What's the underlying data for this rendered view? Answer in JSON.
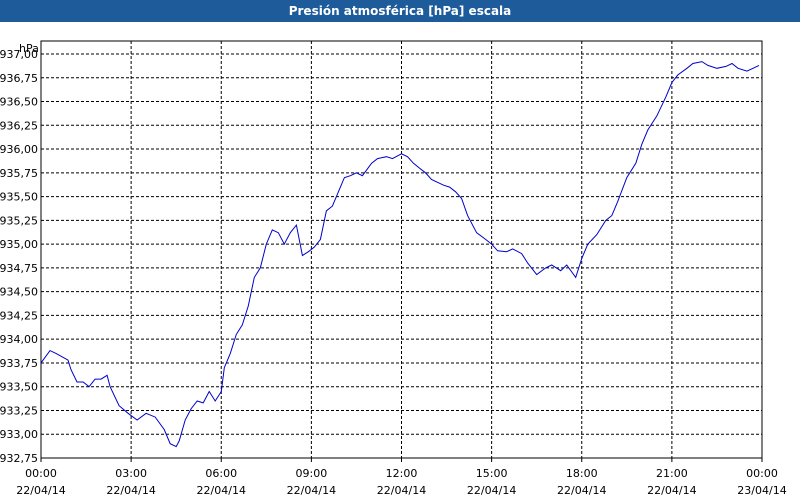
{
  "title": "Presión atmosférica [hPa] escala",
  "colors": {
    "titlebar": "#1e5b9b",
    "line": "#0000cc",
    "grid": "#000000"
  },
  "chart_data": {
    "type": "line",
    "title": "Presión atmosférica [hPa] escala",
    "ylabel": "hPa",
    "ylim": [
      932.75,
      937.0
    ],
    "yticks": [
      "937,00",
      "936,75",
      "936,50",
      "936,25",
      "936,00",
      "935,75",
      "935,50",
      "935,25",
      "935,00",
      "934,75",
      "934,50",
      "934,25",
      "934,00",
      "933,75",
      "933,50",
      "933,25",
      "933,00",
      "932,75"
    ],
    "xlim_hours": [
      0,
      24
    ],
    "xticks": [
      {
        "time": "00:00",
        "date": "22/04/14"
      },
      {
        "time": "03:00",
        "date": "22/04/14"
      },
      {
        "time": "06:00",
        "date": "22/04/14"
      },
      {
        "time": "09:00",
        "date": "22/04/14"
      },
      {
        "time": "12:00",
        "date": "22/04/14"
      },
      {
        "time": "15:00",
        "date": "22/04/14"
      },
      {
        "time": "18:00",
        "date": "22/04/14"
      },
      {
        "time": "21:00",
        "date": "22/04/14"
      },
      {
        "time": "00:00",
        "date": "23/04/14"
      }
    ],
    "grid": true,
    "series": [
      {
        "x": [
          0.0,
          0.3,
          0.5,
          0.9,
          1.0,
          1.2,
          1.4,
          1.6,
          1.8,
          2.0,
          2.2,
          2.3,
          2.6,
          2.9,
          3.2,
          3.5,
          3.8,
          4.1,
          4.3,
          4.5,
          4.6,
          4.8,
          5.0,
          5.2,
          5.4,
          5.6,
          5.8,
          6.0,
          6.1,
          6.3,
          6.5,
          6.7,
          6.9,
          7.1,
          7.3,
          7.5,
          7.7,
          7.9,
          8.1,
          8.3,
          8.5,
          8.7,
          8.9,
          9.1,
          9.3,
          9.5,
          9.7,
          9.9,
          10.1,
          10.3,
          10.5,
          10.7,
          11.0,
          11.2,
          11.5,
          11.7,
          12.0,
          12.2,
          12.4,
          12.6,
          12.8,
          13.0,
          13.2,
          13.4,
          13.6,
          13.8,
          14.0,
          14.2,
          14.5,
          14.8,
          15.0,
          15.2,
          15.5,
          15.7,
          16.0,
          16.2,
          16.5,
          16.8,
          17.0,
          17.3,
          17.5,
          17.8,
          18.0,
          18.2,
          18.5,
          18.8,
          19.0,
          19.2,
          19.5,
          19.8,
          20.0,
          20.2,
          20.5,
          20.8,
          21.0,
          21.2,
          21.5,
          21.7,
          22.0,
          22.2,
          22.5,
          22.8,
          23.0,
          23.2,
          23.5,
          23.7,
          23.9
        ],
        "y": [
          933.75,
          933.88,
          933.85,
          933.78,
          933.68,
          933.55,
          933.55,
          933.5,
          933.58,
          933.58,
          933.62,
          933.5,
          933.3,
          933.22,
          933.15,
          933.22,
          933.18,
          933.05,
          932.9,
          932.87,
          932.93,
          933.15,
          933.27,
          933.35,
          933.33,
          933.45,
          933.35,
          933.45,
          933.7,
          933.85,
          934.05,
          934.15,
          934.35,
          934.65,
          934.75,
          935.0,
          935.15,
          935.12,
          935.0,
          935.12,
          935.2,
          934.88,
          934.92,
          934.97,
          935.05,
          935.35,
          935.4,
          935.55,
          935.7,
          935.72,
          935.75,
          935.72,
          935.85,
          935.9,
          935.92,
          935.9,
          935.95,
          935.92,
          935.85,
          935.8,
          935.75,
          935.68,
          935.65,
          935.62,
          935.6,
          935.55,
          935.48,
          935.3,
          935.12,
          935.05,
          935.0,
          934.93,
          934.92,
          934.95,
          934.9,
          934.8,
          934.68,
          934.75,
          934.78,
          934.72,
          934.78,
          934.65,
          934.85,
          935.0,
          935.1,
          935.25,
          935.3,
          935.45,
          935.7,
          935.85,
          936.05,
          936.2,
          936.35,
          936.55,
          936.7,
          936.78,
          936.85,
          936.9,
          936.92,
          936.88,
          936.85,
          936.87,
          936.9,
          936.85,
          936.82,
          936.85,
          936.88
        ]
      }
    ]
  }
}
